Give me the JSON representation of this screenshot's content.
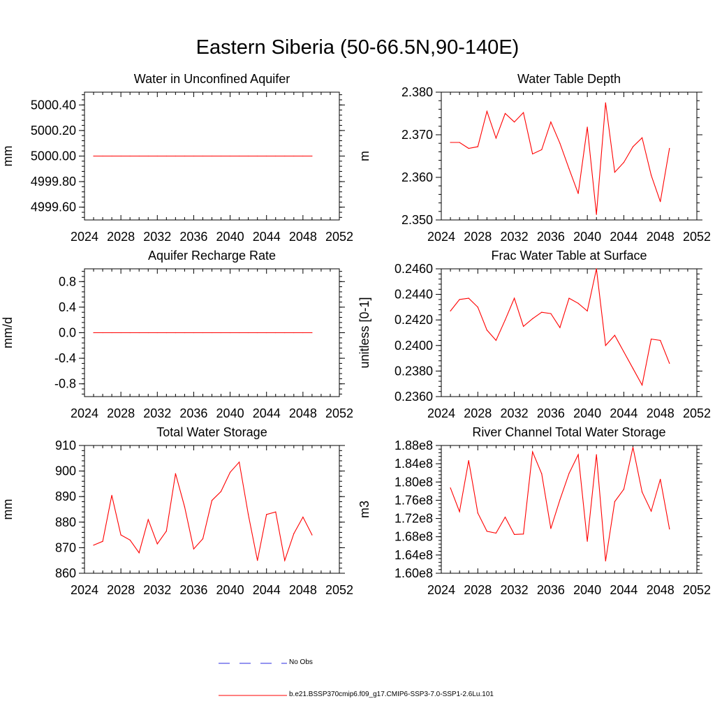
{
  "title": "Eastern Siberia (50-66.5N,90-140E)",
  "colors": {
    "series": "#ff0000",
    "obs": "#2a2ae0",
    "axis": "#000000"
  },
  "legend": {
    "obs_label": "No Obs",
    "model_label": "b.e21.BSSP370cmip6.f09_g17.CMIP6-SSP3-7.0-SSP1-2.6Lu.101"
  },
  "chart_data": [
    {
      "type": "line",
      "title": "Water in Unconfined Aquifer",
      "ylabel": "mm",
      "xlim": [
        2024,
        2052
      ],
      "ylim": [
        4999.5,
        5000.5
      ],
      "x_ticks": [
        "2024",
        "2028",
        "2032",
        "2036",
        "2040",
        "2044",
        "2048",
        "2052"
      ],
      "y_ticks": [
        {
          "v": 4999.6,
          "label": "4999.60"
        },
        {
          "v": 4999.8,
          "label": "4999.80"
        },
        {
          "v": 5000.0,
          "label": "5000.00"
        },
        {
          "v": 5000.2,
          "label": "5000.20"
        },
        {
          "v": 5000.4,
          "label": "5000.40"
        }
      ],
      "x": [
        2025,
        2026,
        2027,
        2028,
        2029,
        2030,
        2031,
        2032,
        2033,
        2034,
        2035,
        2036,
        2037,
        2038,
        2039,
        2040,
        2041,
        2042,
        2043,
        2044,
        2045,
        2046,
        2047,
        2048,
        2049
      ],
      "values": [
        5000,
        5000,
        5000,
        5000,
        5000,
        5000,
        5000,
        5000,
        5000,
        5000,
        5000,
        5000,
        5000,
        5000,
        5000,
        5000,
        5000,
        5000,
        5000,
        5000,
        5000,
        5000,
        5000,
        5000,
        5000
      ]
    },
    {
      "type": "line",
      "title": "Water Table Depth",
      "ylabel": "m",
      "xlim": [
        2024,
        2052
      ],
      "ylim": [
        2.35,
        2.38
      ],
      "x_ticks": [
        "2024",
        "2028",
        "2032",
        "2036",
        "2040",
        "2044",
        "2048",
        "2052"
      ],
      "y_ticks": [
        {
          "v": 2.35,
          "label": "2.350"
        },
        {
          "v": 2.36,
          "label": "2.360"
        },
        {
          "v": 2.37,
          "label": "2.370"
        },
        {
          "v": 2.38,
          "label": "2.380"
        }
      ],
      "x": [
        2025,
        2026,
        2027,
        2028,
        2029,
        2030,
        2031,
        2032,
        2033,
        2034,
        2035,
        2036,
        2037,
        2038,
        2039,
        2040,
        2041,
        2042,
        2043,
        2044,
        2045,
        2046,
        2047,
        2048,
        2049
      ],
      "values": [
        2.3682,
        2.3682,
        2.3668,
        2.3672,
        2.3755,
        2.3692,
        2.375,
        2.373,
        2.3752,
        2.3655,
        2.3665,
        2.373,
        2.368,
        2.362,
        2.3562,
        2.3718,
        2.3513,
        2.3775,
        2.3612,
        2.3635,
        2.3672,
        2.3693,
        2.3605,
        2.3543,
        2.3668
      ]
    },
    {
      "type": "line",
      "title": "Aquifer Recharge Rate",
      "ylabel": "mm/d",
      "xlim": [
        2024,
        2052
      ],
      "ylim": [
        -1.0,
        1.0
      ],
      "x_ticks": [
        "2024",
        "2028",
        "2032",
        "2036",
        "2040",
        "2044",
        "2048",
        "2052"
      ],
      "y_ticks": [
        {
          "v": -0.8,
          "label": "-0.8"
        },
        {
          "v": -0.4,
          "label": "-0.4"
        },
        {
          "v": 0.0,
          "label": "0.0"
        },
        {
          "v": 0.4,
          "label": "0.4"
        },
        {
          "v": 0.8,
          "label": "0.8"
        }
      ],
      "x": [
        2025,
        2026,
        2027,
        2028,
        2029,
        2030,
        2031,
        2032,
        2033,
        2034,
        2035,
        2036,
        2037,
        2038,
        2039,
        2040,
        2041,
        2042,
        2043,
        2044,
        2045,
        2046,
        2047,
        2048,
        2049
      ],
      "values": [
        0,
        0,
        0,
        0,
        0,
        0,
        0,
        0,
        0,
        0,
        0,
        0,
        0,
        0,
        0,
        0,
        0,
        0,
        0,
        0,
        0,
        0,
        0,
        0,
        0
      ]
    },
    {
      "type": "line",
      "title": "Frac Water Table at Surface",
      "ylabel": "unitless [0-1]",
      "xlim": [
        2024,
        2052
      ],
      "ylim": [
        0.236,
        0.246
      ],
      "x_ticks": [
        "2024",
        "2028",
        "2032",
        "2036",
        "2040",
        "2044",
        "2048",
        "2052"
      ],
      "y_ticks": [
        {
          "v": 0.236,
          "label": "0.2360"
        },
        {
          "v": 0.238,
          "label": "0.2380"
        },
        {
          "v": 0.24,
          "label": "0.2400"
        },
        {
          "v": 0.242,
          "label": "0.2420"
        },
        {
          "v": 0.244,
          "label": "0.2440"
        },
        {
          "v": 0.246,
          "label": "0.2460"
        }
      ],
      "x": [
        2025,
        2026,
        2027,
        2028,
        2029,
        2030,
        2031,
        2032,
        2033,
        2034,
        2035,
        2036,
        2037,
        2038,
        2039,
        2040,
        2041,
        2042,
        2043,
        2044,
        2045,
        2046,
        2047,
        2048,
        2049
      ],
      "values": [
        0.2427,
        0.2436,
        0.2437,
        0.243,
        0.2412,
        0.2404,
        0.242,
        0.2437,
        0.2415,
        0.2421,
        0.2426,
        0.2425,
        0.2414,
        0.2437,
        0.2433,
        0.2427,
        0.246,
        0.24,
        0.2408,
        0.2395,
        0.2382,
        0.2369,
        0.2405,
        0.2404,
        0.2386
      ]
    },
    {
      "type": "line",
      "title": "Total Water Storage",
      "ylabel": "mm",
      "xlim": [
        2024,
        2052
      ],
      "ylim": [
        860,
        910
      ],
      "x_ticks": [
        "2024",
        "2028",
        "2032",
        "2036",
        "2040",
        "2044",
        "2048",
        "2052"
      ],
      "y_ticks": [
        {
          "v": 860,
          "label": "860"
        },
        {
          "v": 870,
          "label": "870"
        },
        {
          "v": 880,
          "label": "880"
        },
        {
          "v": 890,
          "label": "890"
        },
        {
          "v": 900,
          "label": "900"
        },
        {
          "v": 910,
          "label": "910"
        }
      ],
      "x": [
        2025,
        2026,
        2027,
        2028,
        2029,
        2030,
        2031,
        2032,
        2033,
        2034,
        2035,
        2036,
        2037,
        2038,
        2039,
        2040,
        2041,
        2042,
        2043,
        2044,
        2045,
        2046,
        2047,
        2048,
        2049
      ],
      "values": [
        871,
        872.5,
        890.5,
        875,
        873,
        868,
        881,
        871.5,
        876.5,
        899,
        886,
        869.5,
        873.5,
        888.5,
        892,
        899.5,
        903.5,
        883,
        865,
        883,
        884,
        865,
        875.5,
        882,
        875
      ]
    },
    {
      "type": "line",
      "title": "River Channel Total Water Storage",
      "ylabel": "m3",
      "xlim": [
        2024,
        2052
      ],
      "ylim": [
        160000000,
        188000000
      ],
      "x_ticks": [
        "2024",
        "2028",
        "2032",
        "2036",
        "2040",
        "2044",
        "2048",
        "2052"
      ],
      "y_ticks": [
        {
          "v": 160000000,
          "label": "1.60e8"
        },
        {
          "v": 164000000,
          "label": "1.64e8"
        },
        {
          "v": 168000000,
          "label": "1.68e8"
        },
        {
          "v": 172000000,
          "label": "1.72e8"
        },
        {
          "v": 176000000,
          "label": "1.76e8"
        },
        {
          "v": 180000000,
          "label": "1.80e8"
        },
        {
          "v": 184000000,
          "label": "1.84e8"
        },
        {
          "v": 188000000,
          "label": "1.88e8"
        }
      ],
      "x": [
        2025,
        2026,
        2027,
        2028,
        2029,
        2030,
        2031,
        2032,
        2033,
        2034,
        2035,
        2036,
        2037,
        2038,
        2039,
        2040,
        2041,
        2042,
        2043,
        2044,
        2045,
        2046,
        2047,
        2048,
        2049
      ],
      "values": [
        178700000,
        173500000,
        184700000,
        173200000,
        169200000,
        168800000,
        172300000,
        168500000,
        168600000,
        186600000,
        181800000,
        169800000,
        176100000,
        181900000,
        186000000,
        167000000,
        186000000,
        162700000,
        175700000,
        178400000,
        187600000,
        177800000,
        173600000,
        180600000,
        169700000
      ]
    }
  ]
}
